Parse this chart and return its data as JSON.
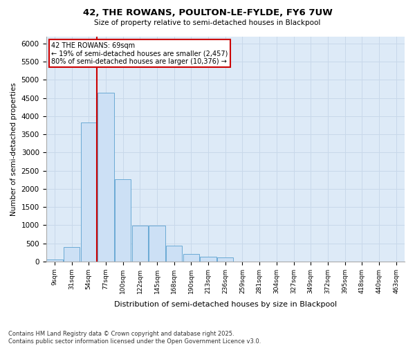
{
  "title": "42, THE ROWANS, POULTON-LE-FYLDE, FY6 7UW",
  "subtitle": "Size of property relative to semi-detached houses in Blackpool",
  "xlabel": "Distribution of semi-detached houses by size in Blackpool",
  "ylabel": "Number of semi-detached properties",
  "bar_color": "#cce0f5",
  "bar_edge_color": "#6aaad4",
  "grid_color": "#c8d8ea",
  "background_color": "#ddeaf7",
  "annotation_box_color": "#cc0000",
  "vline_color": "#cc0000",
  "annotation_text_line1": "42 THE ROWANS: 69sqm",
  "annotation_text_line2": "← 19% of semi-detached houses are smaller (2,457)",
  "annotation_text_line3": "80% of semi-detached houses are larger (10,376) →",
  "footer": "Contains HM Land Registry data © Crown copyright and database right 2025.\nContains public sector information licensed under the Open Government Licence v3.0.",
  "categories": [
    "9sqm",
    "31sqm",
    "54sqm",
    "77sqm",
    "100sqm",
    "122sqm",
    "145sqm",
    "168sqm",
    "190sqm",
    "213sqm",
    "236sqm",
    "259sqm",
    "281sqm",
    "304sqm",
    "327sqm",
    "349sqm",
    "372sqm",
    "395sqm",
    "418sqm",
    "440sqm",
    "463sqm"
  ],
  "values": [
    50,
    390,
    3820,
    4650,
    2270,
    980,
    980,
    430,
    215,
    130,
    110,
    5,
    5,
    3,
    2,
    1,
    1,
    0,
    0,
    0,
    0
  ],
  "property_bin": 2,
  "ylim": [
    0,
    6200
  ],
  "yticks": [
    0,
    500,
    1000,
    1500,
    2000,
    2500,
    3000,
    3500,
    4000,
    4500,
    5000,
    5500,
    6000
  ],
  "fig_width": 6.0,
  "fig_height": 5.0,
  "dpi": 100
}
